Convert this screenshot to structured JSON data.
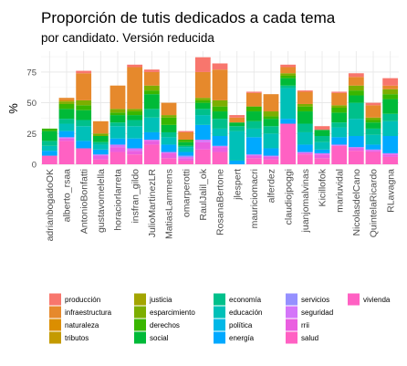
{
  "chart_data": {
    "type": "bar",
    "stacked": true,
    "title": "Proporción de tutis dedicados a cada tema",
    "subtitle": "por candidato. Versión reducida",
    "xlabel": "",
    "ylabel": "%",
    "ylim": [
      0,
      92
    ],
    "yticks": [
      0,
      25,
      50,
      75
    ],
    "grid": true,
    "legend_position": "bottom",
    "categories": [
      "adrianbogadoOK",
      "alberto_rsaa",
      "AntonioBonfatti",
      "gustavomelella",
      "horaciorlarreta",
      "insfran_gildo",
      "JulioMartinezLR",
      "MatiasLammens",
      "omarperotti",
      "RaulJalil_ok",
      "RosanaBertone",
      "jlespert",
      "mauriciomacri",
      "alferdez",
      "claudiojpoggi",
      "juanjomalvinas",
      "Kicillofok",
      "mariuvidal",
      "NicolasdelCano",
      "QuintelaRicardo",
      "RLavagna"
    ],
    "series": [
      {
        "name": "vivienda",
        "color": "#FF61C3",
        "values": [
          0,
          0,
          0,
          0,
          0,
          0,
          0,
          0,
          0,
          0,
          0,
          0,
          0,
          0,
          0,
          0,
          0,
          0,
          0,
          0,
          0
        ]
      },
      {
        "name": "salud",
        "color": "#FF61C3",
        "values": [
          7,
          19,
          13,
          4,
          10,
          8,
          16,
          5,
          3,
          12,
          10,
          0,
          5,
          4,
          33,
          8,
          5,
          15,
          11,
          10,
          6
        ]
      },
      {
        "name": "rrii",
        "color": "#EA5FE0",
        "values": [
          0,
          2,
          0,
          3,
          4,
          3,
          3,
          4,
          2,
          6,
          4,
          0,
          2,
          2,
          0,
          1,
          3,
          0,
          2,
          1,
          2
        ]
      },
      {
        "name": "seguridad",
        "color": "#D475F9",
        "values": [
          0,
          1,
          0,
          1,
          2,
          2,
          1,
          1,
          1,
          2,
          1,
          0,
          1,
          1,
          0,
          1,
          1,
          1,
          1,
          1,
          1
        ]
      },
      {
        "name": "servicios",
        "color": "#9590FF",
        "values": [
          0,
          0,
          0,
          0,
          0,
          0,
          0,
          0,
          1,
          0,
          0,
          0,
          0,
          0,
          0,
          0,
          0,
          0,
          0,
          0,
          0
        ]
      },
      {
        "name": "energía",
        "color": "#00A9FF",
        "values": [
          4,
          5,
          6,
          4,
          5,
          8,
          6,
          6,
          3,
          12,
          8,
          3,
          14,
          6,
          4,
          6,
          3,
          6,
          9,
          4,
          14
        ]
      },
      {
        "name": "política",
        "color": "#00B8E7",
        "values": [
          0,
          0,
          0,
          0,
          0,
          0,
          0,
          0,
          0,
          0,
          0,
          0,
          0,
          0,
          0,
          0,
          0,
          0,
          0,
          0,
          0
        ]
      },
      {
        "name": "educación",
        "color": "#00C0B8",
        "values": [
          4,
          6,
          12,
          4,
          10,
          10,
          12,
          6,
          4,
          8,
          6,
          24,
          7,
          12,
          25,
          10,
          6,
          8,
          14,
          8,
          12
        ]
      },
      {
        "name": "economía",
        "color": "#00C08B",
        "values": [
          4,
          4,
          5,
          2,
          3,
          5,
          7,
          4,
          1,
          5,
          8,
          4,
          6,
          6,
          2,
          7,
          5,
          4,
          13,
          5,
          6
        ]
      },
      {
        "name": "social",
        "color": "#00BA38",
        "values": [
          8,
          8,
          8,
          5,
          6,
          4,
          12,
          6,
          3,
          5,
          6,
          3,
          8,
          6,
          6,
          10,
          5,
          8,
          6,
          5,
          12
        ]
      },
      {
        "name": "derechos",
        "color": "#39B600",
        "values": [
          2,
          4,
          4,
          0,
          2,
          3,
          3,
          6,
          2,
          2,
          4,
          0,
          4,
          2,
          2,
          4,
          0,
          4,
          4,
          2,
          4
        ]
      },
      {
        "name": "esparcimiento",
        "color": "#7CAE00",
        "values": [
          0,
          2,
          4,
          2,
          3,
          2,
          4,
          2,
          0,
          2,
          5,
          0,
          0,
          4,
          2,
          2,
          0,
          2,
          4,
          2,
          4
        ]
      },
      {
        "name": "justicia",
        "color": "#A3A500",
        "values": [
          0,
          0,
          0,
          0,
          0,
          0,
          0,
          0,
          0,
          0,
          0,
          0,
          0,
          0,
          0,
          0,
          0,
          0,
          0,
          0,
          0
        ]
      },
      {
        "name": "tributos",
        "color": "#C49A00",
        "values": [
          0,
          1,
          0,
          0,
          0,
          0,
          0,
          0,
          0,
          0,
          0,
          0,
          0,
          0,
          0,
          0,
          0,
          0,
          0,
          0,
          0
        ]
      },
      {
        "name": "naturaleza",
        "color": "#DB8E00",
        "values": [
          0,
          0,
          0,
          0,
          0,
          0,
          0,
          0,
          0,
          0,
          0,
          0,
          0,
          0,
          0,
          0,
          0,
          0,
          0,
          0,
          0
        ]
      },
      {
        "name": "infraestructura",
        "color": "#E6892C",
        "values": [
          0,
          2,
          22,
          10,
          19,
          34,
          11,
          10,
          6,
          21,
          25,
          4,
          11,
          14,
          5,
          10,
          0,
          10,
          7,
          10,
          3
        ]
      },
      {
        "name": "producción",
        "color": "#F8766D",
        "values": [
          0,
          0,
          2,
          0,
          0,
          2,
          2,
          0,
          1,
          12,
          5,
          2,
          1,
          0,
          2,
          1,
          3,
          1,
          3,
          2,
          6
        ]
      }
    ]
  },
  "legend": {
    "columns": [
      [
        "producción",
        "infraestructura",
        "naturaleza",
        "tributos"
      ],
      [
        "justicia",
        "esparcimiento",
        "derechos",
        "social"
      ],
      [
        "economía",
        "educación",
        "política",
        "energía"
      ],
      [
        "servicios",
        "seguridad",
        "rrii",
        "salud"
      ],
      [
        "vivienda"
      ]
    ]
  }
}
